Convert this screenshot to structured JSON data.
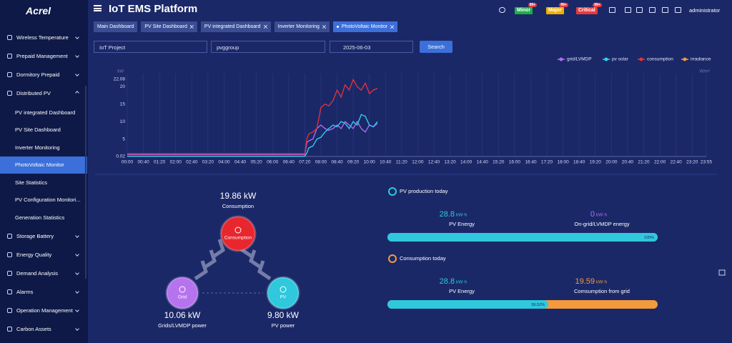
{
  "logo": "Acrel",
  "header": {
    "title": "IoT EMS Platform",
    "user": "administrator",
    "badges": [
      {
        "label": "Minor",
        "count": "99+",
        "color": "#1fae4a"
      },
      {
        "label": "Major",
        "count": "99+",
        "color": "#f0b000"
      },
      {
        "label": "Critical",
        "count": "99+",
        "color": "#e8393c"
      }
    ]
  },
  "menu": [
    {
      "label": "Wireless Temperature"
    },
    {
      "label": "Prepaid Management"
    },
    {
      "label": "Dormitory Prepaid"
    },
    {
      "label": "Distributed PV",
      "children": [
        {
          "label": "PV integrated Dashboard"
        },
        {
          "label": "PV Site Dashboard"
        },
        {
          "label": "Inverter Monitoring"
        },
        {
          "label": "PhotoVoltaic Monitor",
          "active": true
        },
        {
          "label": "Site Statistics"
        },
        {
          "label": "PV Configuration Monitori..."
        },
        {
          "label": "Generation Statistics"
        }
      ]
    },
    {
      "label": "Storage Battery"
    },
    {
      "label": "Energy Quality"
    },
    {
      "label": "Demand Analysis"
    },
    {
      "label": "Alarms"
    },
    {
      "label": "Operation Management"
    },
    {
      "label": "Carbon Assets"
    }
  ],
  "tabs": [
    {
      "label": "Main Dashboard"
    },
    {
      "label": "PV Site Dashboard"
    },
    {
      "label": "PV integrated Dashboard"
    },
    {
      "label": "Inverter Monitoring"
    },
    {
      "label": "PhotoVoltaic Monitor",
      "active": true
    }
  ],
  "filters": {
    "project": "IoT Project",
    "group": "pvggroup",
    "date": "2025-06-03",
    "button": "Search"
  },
  "chart": {
    "type": "line",
    "y_unit": "kW",
    "y2_unit": "W/m²",
    "xlim": [
      0,
      1435
    ],
    "ylim": [
      0.02,
      22.08
    ],
    "yticks": [
      0.02,
      5,
      10,
      15,
      20,
      22.08
    ],
    "xticks": [
      {
        "value": 0,
        "label": "00:00"
      },
      {
        "value": 40,
        "label": "00:40"
      },
      {
        "value": 80,
        "label": "01:20"
      },
      {
        "value": 120,
        "label": "02:00"
      },
      {
        "value": 160,
        "label": "02:40"
      },
      {
        "value": 200,
        "label": "03:20"
      },
      {
        "value": 240,
        "label": "04:00"
      },
      {
        "value": 280,
        "label": "04:40"
      },
      {
        "value": 320,
        "label": "05:20"
      },
      {
        "value": 360,
        "label": "06:00"
      },
      {
        "value": 400,
        "label": "06:40"
      },
      {
        "value": 440,
        "label": "07:20"
      },
      {
        "value": 480,
        "label": "08:00"
      },
      {
        "value": 520,
        "label": "08:40"
      },
      {
        "value": 560,
        "label": "09:20"
      },
      {
        "value": 600,
        "label": "10:00"
      },
      {
        "value": 640,
        "label": "10:40"
      },
      {
        "value": 680,
        "label": "11:20"
      },
      {
        "value": 720,
        "label": "12:00"
      },
      {
        "value": 760,
        "label": "12:40"
      },
      {
        "value": 800,
        "label": "13:20"
      },
      {
        "value": 840,
        "label": "14:00"
      },
      {
        "value": 880,
        "label": "14:40"
      },
      {
        "value": 920,
        "label": "15:20"
      },
      {
        "value": 960,
        "label": "16:00"
      },
      {
        "value": 1000,
        "label": "16:40"
      },
      {
        "value": 1040,
        "label": "17:20"
      },
      {
        "value": 1080,
        "label": "18:00"
      },
      {
        "value": 1120,
        "label": "18:40"
      },
      {
        "value": 1160,
        "label": "19:20"
      },
      {
        "value": 1200,
        "label": "20:00"
      },
      {
        "value": 1240,
        "label": "20:40"
      },
      {
        "value": 1280,
        "label": "21:20"
      },
      {
        "value": 1320,
        "label": "22:00"
      },
      {
        "value": 1360,
        "label": "22:40"
      },
      {
        "value": 1400,
        "label": "23:20"
      },
      {
        "value": 1435,
        "label": "23:55"
      }
    ],
    "x": [
      0,
      440,
      445,
      450,
      460,
      470,
      480,
      490,
      500,
      510,
      520,
      530,
      540,
      550,
      560,
      570,
      580,
      590,
      600,
      610,
      620
    ],
    "series": [
      {
        "name": "grid/LVMDP",
        "color": "#b46cf2",
        "values": [
          0.6,
          0.6,
          4,
          4.5,
          5,
          8,
          9,
          8,
          7.5,
          8,
          9,
          8,
          10,
          9,
          8,
          10,
          8,
          7,
          9,
          8.5,
          9.5
        ]
      },
      {
        "name": "pv solar",
        "color": "#2fd3f2",
        "values": [
          0.1,
          0.1,
          1,
          2.5,
          3,
          5,
          5.5,
          7,
          8,
          9,
          8.5,
          10,
          9.5,
          8,
          10,
          9,
          12,
          11.5,
          9,
          8.5,
          10
        ]
      },
      {
        "name": "consumption",
        "color": "#e8323c",
        "values": [
          0.8,
          0.8,
          5,
          6.5,
          7,
          8,
          14,
          15,
          14.5,
          16,
          19,
          17,
          20.5,
          19,
          22,
          20,
          19,
          21,
          18,
          19,
          19.5
        ]
      },
      {
        "name": "irradiance",
        "color": "#f39a3c",
        "values": [
          null,
          null,
          null,
          null,
          null,
          null,
          null,
          null,
          null,
          null,
          null,
          null,
          null,
          null,
          null,
          null,
          null,
          null,
          null,
          null,
          null
        ]
      }
    ]
  },
  "flow": {
    "consumption": {
      "value": "19.86 kW",
      "label": "Consumption",
      "node": "Consumption"
    },
    "grid": {
      "value": "10.06 kW",
      "label": "Grids/LVMDP power",
      "node": "Grid"
    },
    "pv": {
      "value": "9.80 kW",
      "label": "PV power",
      "node": "PV"
    }
  },
  "pv_today": {
    "title": "PV production today",
    "left": {
      "value": "28.8",
      "unit": "kW·h",
      "label": "PV Energy"
    },
    "right": {
      "value": "0",
      "unit": "kW·h",
      "label": "On-grid/LVMDP energy"
    },
    "bar": {
      "value": 100,
      "label": "100%"
    }
  },
  "consumption_today": {
    "title": "Consumption today",
    "left": {
      "value": "28.8",
      "unit": "kW·h",
      "label": "PV Energy"
    },
    "right": {
      "value": "19.59",
      "unit": "kW·h",
      "label": "Comsumption from grid"
    },
    "bar": {
      "value": 59.52,
      "label": "59.52%"
    }
  }
}
